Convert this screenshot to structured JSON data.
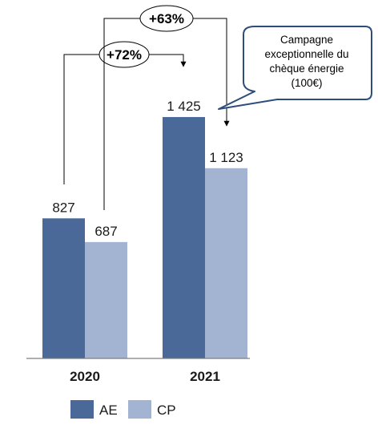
{
  "chart_data": {
    "type": "bar",
    "categories": [
      "2020",
      "2021"
    ],
    "series": [
      {
        "name": "AE",
        "values": [
          827,
          1425
        ],
        "labels": [
          "827",
          "1 425"
        ],
        "color": "#4a6998"
      },
      {
        "name": "CP",
        "values": [
          687,
          1123
        ],
        "labels": [
          "687",
          "1 123"
        ],
        "color": "#a2b4d2"
      }
    ],
    "ylim": [
      0,
      1600
    ],
    "grid": false,
    "legend": "bottom-left",
    "annotations": {
      "growth_ae": "+72%",
      "growth_cp": "+63%",
      "callout": [
        "Campagne",
        "exceptionnelle du",
        "chèque énergie",
        "(100€)"
      ]
    },
    "colors": {
      "callout_border": "#2e4d7b",
      "axis": "#7f7f7f",
      "arrows": "#000000"
    }
  }
}
